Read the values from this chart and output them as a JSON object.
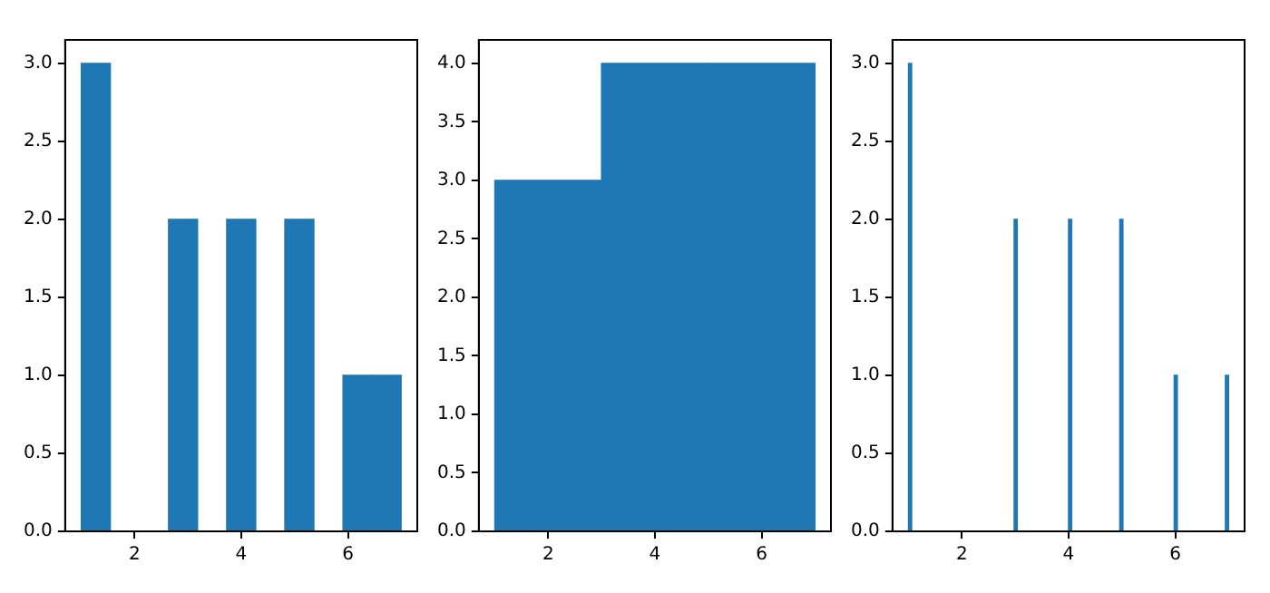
{
  "chart_data": [
    {
      "type": "histogram",
      "bins": [
        1,
        1.55,
        2.09,
        2.64,
        3.18,
        3.73,
        4.27,
        4.82,
        5.36,
        5.91,
        6.45,
        7
      ],
      "values": [
        3,
        0,
        0,
        2,
        0,
        2,
        0,
        2,
        0,
        1,
        1
      ],
      "color": "#1f77b4",
      "xlim": [
        0.7,
        7.3
      ],
      "xticks": [
        2,
        4,
        6
      ],
      "ylim": [
        0,
        3.15
      ],
      "yticks": [
        {
          "value": 0,
          "label": "0.0"
        },
        {
          "value": 0.5,
          "label": "0.5"
        },
        {
          "value": 1,
          "label": "1.0"
        },
        {
          "value": 1.5,
          "label": "1.5"
        },
        {
          "value": 2,
          "label": "2.0"
        },
        {
          "value": 2.5,
          "label": "2.5"
        },
        {
          "value": 3,
          "label": "3.0"
        }
      ]
    },
    {
      "type": "histogram",
      "bins": [
        1,
        3,
        5,
        7
      ],
      "values": [
        3,
        4,
        4
      ],
      "color": "#1f77b4",
      "xlim": [
        0.7,
        7.3
      ],
      "xticks": [
        2,
        4,
        6
      ],
      "ylim": [
        0,
        4.2
      ],
      "yticks": [
        {
          "value": 0,
          "label": "0.0"
        },
        {
          "value": 0.5,
          "label": "0.5"
        },
        {
          "value": 1,
          "label": "1.0"
        },
        {
          "value": 1.5,
          "label": "1.5"
        },
        {
          "value": 2,
          "label": "2.0"
        },
        {
          "value": 2.5,
          "label": "2.5"
        },
        {
          "value": 3,
          "label": "3.0"
        },
        {
          "value": 3.5,
          "label": "3.5"
        },
        {
          "value": 4,
          "label": "4.0"
        }
      ]
    },
    {
      "type": "histogram",
      "bins": [
        1,
        1.06,
        1.12,
        1.18,
        1.24,
        1.3,
        1.36,
        1.42,
        1.48,
        1.54,
        1.6,
        1.66,
        1.72,
        1.78,
        1.84,
        1.9,
        1.96,
        2.02,
        2.08,
        2.14,
        2.2,
        2.26,
        2.32,
        2.38,
        2.44,
        2.5,
        2.56,
        2.62,
        2.68,
        2.74,
        2.8,
        2.86,
        2.92,
        2.98,
        3.04,
        3.1,
        3.16,
        3.22,
        3.28,
        3.34,
        3.4,
        3.46,
        3.52,
        3.58,
        3.64,
        3.7,
        3.76,
        3.82,
        3.88,
        3.94,
        4,
        4.06,
        4.12,
        4.18,
        4.24,
        4.3,
        4.36,
        4.42,
        4.48,
        4.54,
        4.6,
        4.66,
        4.72,
        4.78,
        4.84,
        4.9,
        4.96,
        5.02,
        5.08,
        5.14,
        5.2,
        5.26,
        5.32,
        5.38,
        5.44,
        5.5,
        5.56,
        5.62,
        5.68,
        5.74,
        5.8,
        5.86,
        5.92,
        5.98,
        6.04,
        6.1,
        6.16,
        6.22,
        6.28,
        6.34,
        6.4,
        6.46,
        6.52,
        6.58,
        6.64,
        6.7,
        6.76,
        6.82,
        6.88,
        6.94,
        7
      ],
      "values": [
        3,
        0,
        0,
        0,
        0,
        0,
        0,
        0,
        0,
        0,
        0,
        0,
        0,
        0,
        0,
        0,
        0,
        0,
        0,
        0,
        0,
        0,
        0,
        0,
        0,
        0,
        0,
        0,
        0,
        0,
        0,
        0,
        0,
        2,
        0,
        0,
        0,
        0,
        0,
        0,
        0,
        0,
        0,
        0,
        0,
        0,
        0,
        0,
        0,
        0,
        2,
        0,
        0,
        0,
        0,
        0,
        0,
        0,
        0,
        0,
        0,
        0,
        0,
        0,
        0,
        0,
        2,
        0,
        0,
        0,
        0,
        0,
        0,
        0,
        0,
        0,
        0,
        0,
        0,
        0,
        0,
        0,
        0,
        1,
        0,
        0,
        0,
        0,
        0,
        0,
        0,
        0,
        0,
        0,
        0,
        0,
        0,
        0,
        0,
        1
      ],
      "color": "#1f77b4",
      "xlim": [
        0.7,
        7.3
      ],
      "xticks": [
        2,
        4,
        6
      ],
      "ylim": [
        0,
        3.15
      ],
      "yticks": [
        {
          "value": 0,
          "label": "0.0"
        },
        {
          "value": 0.5,
          "label": "0.5"
        },
        {
          "value": 1,
          "label": "1.0"
        },
        {
          "value": 1.5,
          "label": "1.5"
        },
        {
          "value": 2,
          "label": "2.0"
        },
        {
          "value": 2.5,
          "label": "2.5"
        },
        {
          "value": 3,
          "label": "3.0"
        }
      ]
    }
  ]
}
